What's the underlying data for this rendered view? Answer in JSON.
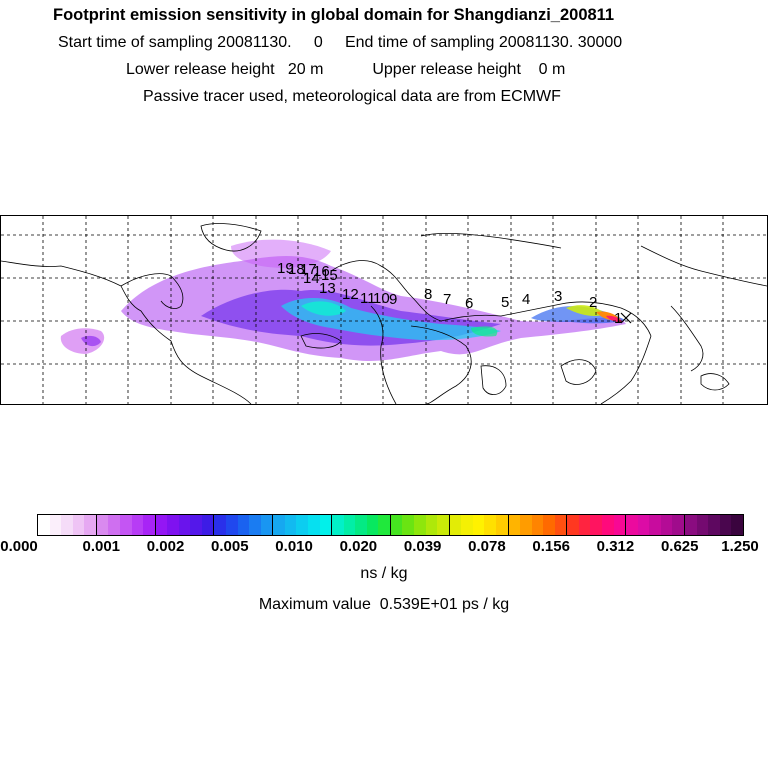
{
  "header": {
    "title": "Footprint emission sensitivity in global domain for Shangdianzi_200811",
    "line1": "Start time of sampling 20081130.     0     End time of sampling 20081130. 30000",
    "line2": "Lower release height   20 m           Upper release height    0 m",
    "line3": "Passive tracer used, meteorological data are from ECMWF"
  },
  "map": {
    "day_labels": [
      "1",
      "2",
      "3",
      "4",
      "5",
      "6",
      "7",
      "8",
      "9",
      "10",
      "11",
      "12",
      "13",
      "14",
      "15",
      "16",
      "17",
      "18",
      "19"
    ]
  },
  "colorbar": {
    "tick_labels": [
      "0.000",
      "0.001",
      "0.002",
      "0.005",
      "0.010",
      "0.020",
      "0.039",
      "0.078",
      "0.156",
      "0.312",
      "0.625",
      "1.250"
    ],
    "colors": [
      "#ffffff",
      "#fbeffb",
      "#f5dcf8",
      "#efc4f5",
      "#e6a8f2",
      "#d98aef",
      "#cf6ff0",
      "#c455f3",
      "#b73cf5",
      "#a824f6",
      "#9416f4",
      "#7f12f0",
      "#6a14ec",
      "#5418ea",
      "#3d1ce6",
      "#2a30ea",
      "#2048ee",
      "#1a62f0",
      "#1a7cf2",
      "#1996f2",
      "#16a8f0",
      "#12baf0",
      "#0ccdf0",
      "#06e0f0",
      "#02f0ea",
      "#02f0c8",
      "#02eea6",
      "#04ea84",
      "#08e860",
      "#20e83c",
      "#46e420",
      "#6ae412",
      "#8ee60c",
      "#aee80a",
      "#caea08",
      "#e2ec06",
      "#f4f004",
      "#fff200",
      "#ffe000",
      "#ffcc00",
      "#ffb400",
      "#ff9c00",
      "#ff8400",
      "#ff6a00",
      "#ff5010",
      "#ff3820",
      "#ff2440",
      "#ff1460",
      "#ff0a7c",
      "#f80894",
      "#ec0a9e",
      "#dc0ca6",
      "#c80c9e",
      "#b40c96",
      "#a00c8c",
      "#8a0c80",
      "#740a70",
      "#5e0860",
      "#4a064e",
      "#3a043e"
    ]
  },
  "unit_label": "ns / kg",
  "max_label": "Maximum value  0.539E+01 ps / kg"
}
